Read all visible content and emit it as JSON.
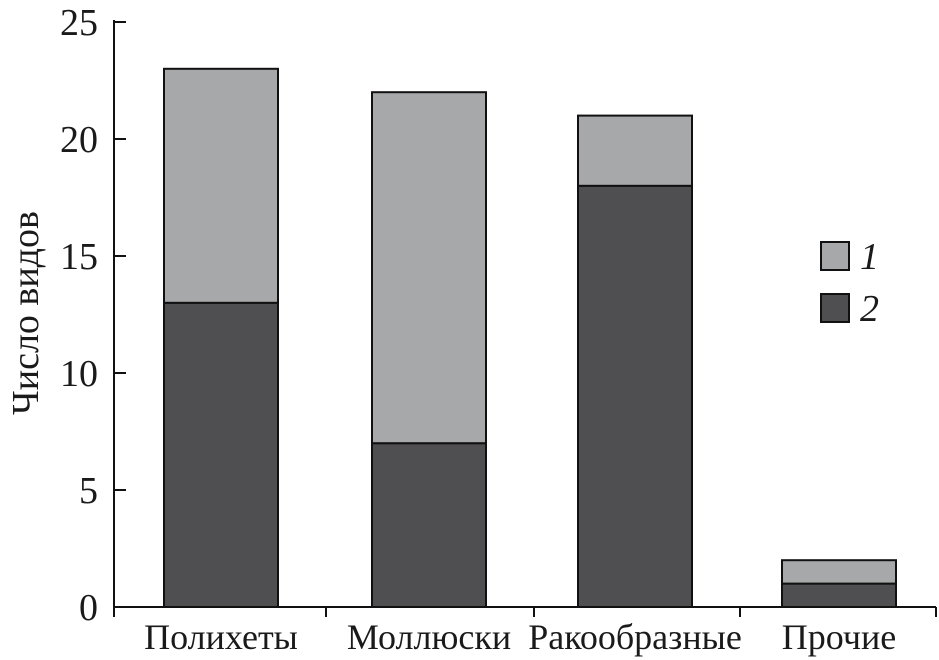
{
  "chart_data": {
    "type": "bar",
    "stacked": true,
    "categories": [
      "Полихеты",
      "Моллюски",
      "Ракообразные",
      "Прочие"
    ],
    "series": [
      {
        "name": "2",
        "values": [
          13,
          7,
          18,
          1
        ],
        "color": "#4f4f51"
      },
      {
        "name": "1",
        "values": [
          10,
          15,
          3,
          1
        ],
        "color": "#a7a8aa"
      }
    ],
    "totals": [
      23,
      22,
      21,
      2
    ],
    "ylabel": "Число видов",
    "xlabel": "",
    "ylim": [
      0,
      25
    ],
    "yticks": [
      0,
      5,
      10,
      15,
      20,
      25
    ],
    "grid": false,
    "legend": {
      "placement": "right",
      "entries": [
        {
          "label": "1",
          "color": "#a7a8aa"
        },
        {
          "label": "2",
          "color": "#4f4f51"
        }
      ]
    }
  }
}
